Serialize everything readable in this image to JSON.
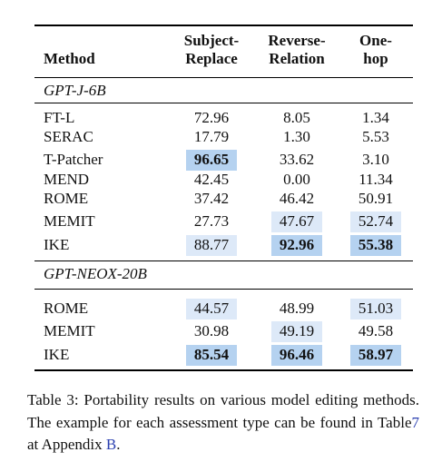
{
  "table": {
    "header": {
      "method": "Method",
      "columns": [
        [
          "Subject-",
          "Replace"
        ],
        [
          "Reverse-",
          "Relation"
        ],
        [
          "One-",
          "hop"
        ]
      ]
    },
    "groups": [
      {
        "name": "GPT-J-6B",
        "rows": [
          [
            "FT-L",
            "72.96",
            "8.05",
            "1.34"
          ],
          [
            "SERAC",
            "17.79",
            "1.30",
            "5.53"
          ],
          [
            "T-Patcher",
            "96.65",
            "33.62",
            "3.10"
          ],
          [
            "MEND",
            "42.45",
            "0.00",
            "11.34"
          ],
          [
            "ROME",
            "37.42",
            "46.42",
            "50.91"
          ],
          [
            "MEMIT",
            "27.73",
            "47.67",
            "52.74"
          ],
          [
            "IKE",
            "88.77",
            "92.96",
            "55.38"
          ]
        ]
      },
      {
        "name": "GPT-NEOX-20B",
        "rows": [
          [
            "ROME",
            "44.57",
            "48.99",
            "51.03"
          ],
          [
            "MEMIT",
            "30.98",
            "49.19",
            "49.58"
          ],
          [
            "IKE",
            "85.54",
            "96.46",
            "58.97"
          ]
        ]
      }
    ]
  },
  "caption": [
    "Table 3:",
    "Portability results on various model editing methods. The example for each assessment type can be found in Table",
    "7",
    " at Appendix ",
    "B",
    "."
  ]
}
